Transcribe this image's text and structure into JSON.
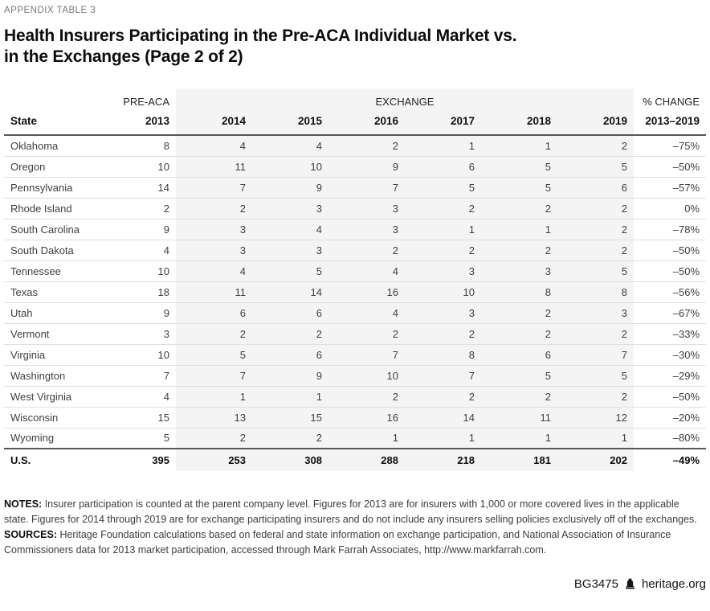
{
  "page": {
    "eyebrow": "APPENDIX TABLE 3",
    "title_line1": "Health Insurers Participating in the Pre-ACA Individual Market vs.",
    "title_line2": "in the Exchanges (Page 2 of 2)"
  },
  "chart_data": {
    "type": "table",
    "title": "Health Insurers Participating in the Pre-ACA Individual Market vs. in the Exchanges (Page 2 of 2)",
    "group_headers": {
      "pre_aca": "PRE-ACA",
      "exchange": "EXCHANGE",
      "pct_change": "% CHANGE"
    },
    "columns": [
      "State",
      "2013",
      "2014",
      "2015",
      "2016",
      "2017",
      "2018",
      "2019",
      "2013–2019"
    ],
    "rows": [
      [
        "Oklahoma",
        8,
        4,
        4,
        2,
        1,
        1,
        2,
        "–75%"
      ],
      [
        "Oregon",
        10,
        11,
        10,
        9,
        6,
        5,
        5,
        "–50%"
      ],
      [
        "Pennsylvania",
        14,
        7,
        9,
        7,
        5,
        5,
        6,
        "–57%"
      ],
      [
        "Rhode Island",
        2,
        2,
        3,
        3,
        2,
        2,
        2,
        "0%"
      ],
      [
        "South Carolina",
        9,
        3,
        4,
        3,
        1,
        1,
        2,
        "–78%"
      ],
      [
        "South Dakota",
        4,
        3,
        3,
        2,
        2,
        2,
        2,
        "–50%"
      ],
      [
        "Tennessee",
        10,
        4,
        5,
        4,
        3,
        3,
        5,
        "–50%"
      ],
      [
        "Texas",
        18,
        11,
        14,
        16,
        10,
        8,
        8,
        "–56%"
      ],
      [
        "Utah",
        9,
        6,
        6,
        4,
        3,
        2,
        3,
        "–67%"
      ],
      [
        "Vermont",
        3,
        2,
        2,
        2,
        2,
        2,
        2,
        "–33%"
      ],
      [
        "Virginia",
        10,
        5,
        6,
        7,
        8,
        6,
        7,
        "–30%"
      ],
      [
        "Washington",
        7,
        7,
        9,
        10,
        7,
        5,
        5,
        "–29%"
      ],
      [
        "West Virginia",
        4,
        1,
        1,
        2,
        2,
        2,
        2,
        "–50%"
      ],
      [
        "Wisconsin",
        15,
        13,
        15,
        16,
        14,
        11,
        12,
        "–20%"
      ],
      [
        "Wyoming",
        5,
        2,
        2,
        1,
        1,
        1,
        1,
        "–80%"
      ]
    ],
    "totals": [
      "U.S.",
      395,
      253,
      308,
      288,
      218,
      181,
      202,
      "–49%"
    ],
    "layout": {
      "exchange_band_color": "#f4f4f4",
      "rule_dark": "#55565a",
      "rule_light": "#e0e0e0"
    }
  },
  "notes": {
    "notes_label": "NOTES:",
    "notes_text": " Insurer participation is counted at the parent company level. Figures for 2013 are for insurers with 1,000 or more covered lives in the applicable state. Figures for 2014 through 2019 are for exchange participating insurers and do not include any insurers selling policies exclusively off of the exchanges.",
    "sources_label": "SOURCES:",
    "sources_text": " Heritage Foundation calculations based on federal and state information on exchange participation, and National Association of Insurance Commissioners data for 2013 market participation, accessed through Mark Farrah Associates, http://www.markfarrah.com."
  },
  "footer": {
    "doc_id": "BG3475",
    "site": "heritage.org",
    "logo_icon": "liberty-bell-icon"
  }
}
